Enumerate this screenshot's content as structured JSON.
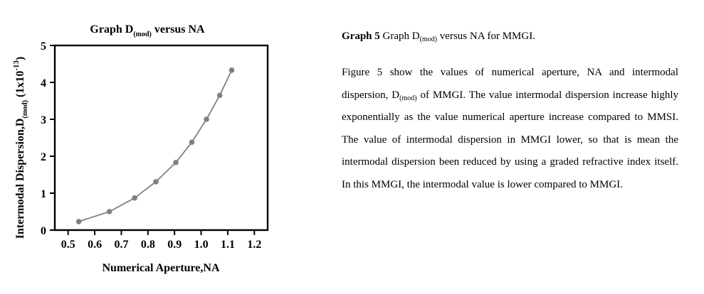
{
  "caption": {
    "label": "Graph 5",
    "text_main": "Graph D",
    "text_sub": "(mod)",
    "text_rest": " versus NA for MMGI."
  },
  "paragraph": {
    "s1": "Figure 5 show the values of numerical aperture, NA and intermodal dispersion, D",
    "s1_sub": "(mod)",
    "s2": " of MMGI. The value intermodal dispersion increase highly exponentially as the value numerical aperture increase compared to MMSI. The value of intermodal dispersion in MMGI lower, so that is mean the intermodal dispersion been reduced by using a graded refractive index itself. In this MMGI, the intermodal value is lower compared to MMGI."
  },
  "chart_data": {
    "type": "line",
    "title": {
      "main": "Graph D",
      "sub": "(mod)",
      "rest": " versus NA"
    },
    "xlabel": "Numerical Aperture,NA",
    "ylabel": {
      "main": "Intermodal Dispersion,D",
      "sub": "(mod)",
      "unit_open": " (1x10",
      "unit_sup": "-13",
      "unit_close": ")"
    },
    "xlim": [
      0.45,
      1.25
    ],
    "ylim": [
      0,
      5
    ],
    "xticks": [
      "0.5",
      "0.6",
      "0.7",
      "0.8",
      "0.9",
      "1.0",
      "1.1",
      "1.2"
    ],
    "yticks": [
      "0",
      "1",
      "2",
      "3",
      "4",
      "5"
    ],
    "x": [
      0.54,
      0.655,
      0.75,
      0.83,
      0.905,
      0.965,
      1.02,
      1.07,
      1.115
    ],
    "y": [
      0.23,
      0.5,
      0.87,
      1.31,
      1.83,
      2.38,
      3.0,
      3.65,
      4.33
    ],
    "marker_color": "#808080",
    "line_color": "#808080",
    "grid": false
  }
}
